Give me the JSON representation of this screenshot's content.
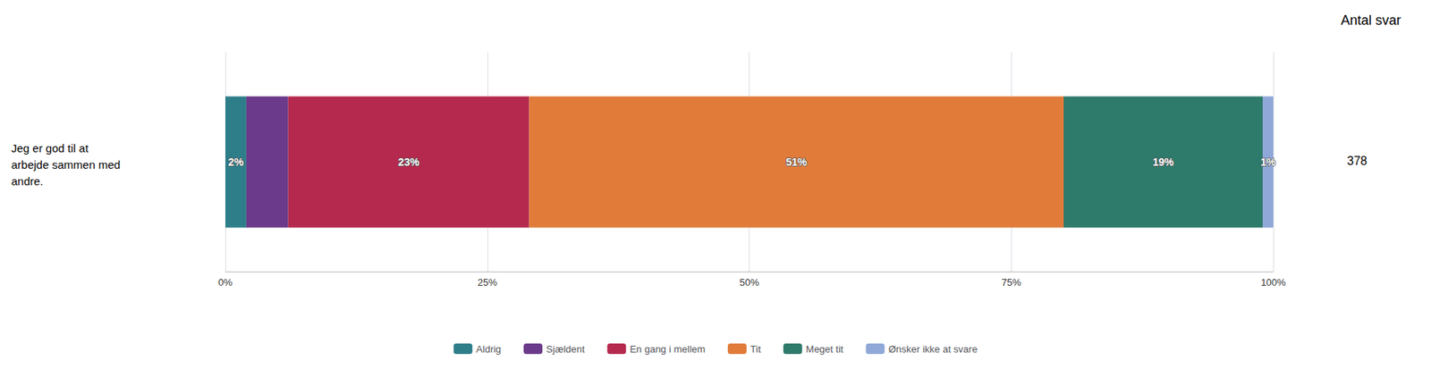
{
  "chart_data": {
    "type": "bar",
    "orientation": "horizontal",
    "stacked": true,
    "title": "Jeg er god til at\narbejde sammen med\nandre.",
    "annotations": [
      "Antal svar",
      "378"
    ],
    "categories": [
      null
    ],
    "series": [
      {
        "name": "Aldrig",
        "color": "#2e7e8a",
        "values": [
          2
        ],
        "value_labels": [
          "2%"
        ]
      },
      {
        "name": "Sjældent",
        "color": "#6b3a8a",
        "values": [
          4
        ],
        "value_labels": [
          null
        ]
      },
      {
        "name": "En gang i mellem",
        "color": "#b5294e",
        "values": [
          23
        ],
        "value_labels": [
          "23%"
        ]
      },
      {
        "name": "Tit",
        "color": "#e07b3a",
        "values": [
          51
        ],
        "value_labels": [
          "51%"
        ]
      },
      {
        "name": "Meget tit",
        "color": "#2e7a6b",
        "values": [
          19
        ],
        "value_labels": [
          "19%"
        ]
      },
      {
        "name": "Ønsker ikke at svare",
        "color": "#8fa8d8",
        "values": [
          1
        ],
        "value_labels": [
          "1%"
        ]
      }
    ],
    "xlim": [
      0,
      100
    ],
    "xticks": [
      {
        "value": 0,
        "label": "0%"
      },
      {
        "value": 25,
        "label": "25%"
      },
      {
        "value": 50,
        "label": "50%"
      },
      {
        "value": 75,
        "label": "75%"
      },
      {
        "value": 100,
        "label": "100%"
      }
    ],
    "grid": true,
    "data_labels": true,
    "legend": "bottom"
  }
}
